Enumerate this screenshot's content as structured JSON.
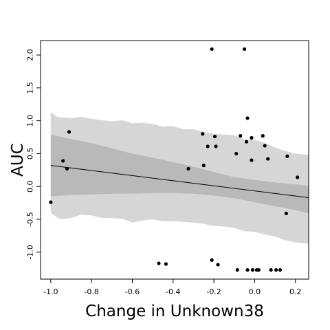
{
  "chart_data": {
    "type": "scatter",
    "title": "",
    "xlabel": "Change in Unknown38",
    "ylabel": "AUC",
    "xlim": [
      -1.05,
      0.265
    ],
    "ylim": [
      -1.41,
      2.22
    ],
    "x_ticks": [
      -1.0,
      -0.8,
      -0.6,
      -0.4,
      -0.2,
      0.0,
      0.2
    ],
    "x_tick_labels": [
      "-1.0",
      "-0.8",
      "-0.6",
      "-0.4",
      "-0.2",
      "0.0",
      "0.2"
    ],
    "y_ticks": [
      -1.0,
      -0.5,
      0.0,
      0.5,
      1.0,
      1.5,
      2.0
    ],
    "y_tick_labels": [
      "-1.0",
      "-0.5",
      "0.0",
      "0.5",
      "1.0",
      "1.5",
      "2.0"
    ],
    "grid": false,
    "points": [
      {
        "x": -1.0,
        "y": -0.24
      },
      {
        "x": -0.94,
        "y": 0.39
      },
      {
        "x": -0.92,
        "y": 0.27
      },
      {
        "x": -0.91,
        "y": 0.83
      },
      {
        "x": -0.47,
        "y": -1.17
      },
      {
        "x": -0.435,
        "y": -1.18
      },
      {
        "x": -0.325,
        "y": 0.27
      },
      {
        "x": -0.255,
        "y": 0.8
      },
      {
        "x": -0.25,
        "y": 0.32
      },
      {
        "x": -0.23,
        "y": 0.61
      },
      {
        "x": -0.21,
        "y": 2.09
      },
      {
        "x": -0.21,
        "y": -1.12
      },
      {
        "x": -0.195,
        "y": 0.76
      },
      {
        "x": -0.19,
        "y": 0.61
      },
      {
        "x": -0.18,
        "y": -1.19
      },
      {
        "x": -0.09,
        "y": 0.5
      },
      {
        "x": -0.085,
        "y": -1.27
      },
      {
        "x": -0.07,
        "y": 0.77
      },
      {
        "x": -0.05,
        "y": 2.09
      },
      {
        "x": -0.04,
        "y": 0.68
      },
      {
        "x": -0.035,
        "y": 1.04
      },
      {
        "x": -0.035,
        "y": -1.27
      },
      {
        "x": -0.015,
        "y": 0.74
      },
      {
        "x": -0.015,
        "y": 0.4
      },
      {
        "x": -0.01,
        "y": -1.27
      },
      {
        "x": 0.01,
        "y": -1.27
      },
      {
        "x": 0.02,
        "y": -1.27
      },
      {
        "x": 0.04,
        "y": 0.77
      },
      {
        "x": 0.05,
        "y": 0.62
      },
      {
        "x": 0.065,
        "y": 0.42
      },
      {
        "x": 0.08,
        "y": -1.27
      },
      {
        "x": 0.105,
        "y": -1.27
      },
      {
        "x": 0.125,
        "y": -1.27
      },
      {
        "x": 0.155,
        "y": -0.41
      },
      {
        "x": 0.16,
        "y": 0.46
      },
      {
        "x": 0.21,
        "y": 0.14
      }
    ],
    "fit_line": {
      "x": [
        -1.0,
        0.265
      ],
      "y": [
        0.32,
        -0.17
      ]
    },
    "inner_band": {
      "x": [
        -1.0,
        -0.9,
        -0.8,
        -0.7,
        -0.6,
        -0.5,
        -0.4,
        -0.3,
        -0.2,
        -0.1,
        0.0,
        0.1,
        0.2,
        0.265
      ],
      "upper": [
        0.79,
        0.72,
        0.66,
        0.58,
        0.5,
        0.44,
        0.37,
        0.3,
        0.22,
        0.14,
        0.1,
        0.06,
        0.03,
        0.01
      ],
      "lower": [
        -0.15,
        -0.13,
        -0.12,
        -0.11,
        -0.11,
        -0.1,
        -0.1,
        -0.11,
        -0.14,
        -0.18,
        -0.24,
        -0.3,
        -0.36,
        -0.41
      ]
    },
    "outer_band": {
      "x": [
        -1.0,
        -0.97,
        -0.95,
        -0.9,
        -0.85,
        -0.8,
        -0.75,
        -0.7,
        -0.65,
        -0.6,
        -0.55,
        -0.5,
        -0.45,
        -0.4,
        -0.35,
        -0.3,
        -0.25,
        -0.2,
        -0.15,
        -0.1,
        -0.05,
        0.0,
        0.05,
        0.1,
        0.15,
        0.2,
        0.265
      ],
      "upper": [
        1.13,
        1.06,
        1.05,
        1.04,
        1.06,
        1.03,
        1.01,
        0.99,
        1.01,
        0.96,
        0.97,
        0.95,
        0.91,
        0.92,
        0.87,
        0.87,
        0.83,
        0.8,
        0.79,
        0.78,
        0.72,
        0.71,
        0.66,
        0.59,
        0.54,
        0.5,
        0.48
      ],
      "lower": [
        -0.4,
        -0.47,
        -0.5,
        -0.48,
        -0.43,
        -0.44,
        -0.48,
        -0.48,
        -0.49,
        -0.55,
        -0.52,
        -0.5,
        -0.53,
        -0.53,
        -0.54,
        -0.55,
        -0.57,
        -0.6,
        -0.61,
        -0.63,
        -0.68,
        -0.69,
        -0.73,
        -0.76,
        -0.82,
        -0.85,
        -0.87
      ]
    },
    "colors": {
      "outer_band": "#d6d6d6",
      "inner_band": "#b9b9b9",
      "points": "#000000",
      "line": "#000000",
      "background": "#ffffff"
    }
  }
}
